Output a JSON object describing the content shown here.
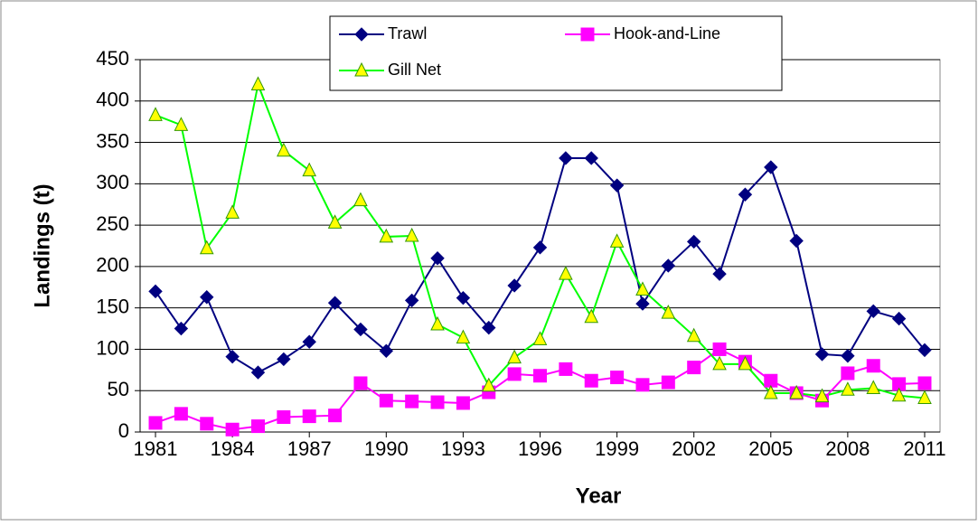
{
  "chart_data": {
    "type": "line",
    "x_label": "Year",
    "y_label": "Landings (t)",
    "x": [
      1981,
      1982,
      1983,
      1984,
      1985,
      1986,
      1987,
      1988,
      1989,
      1990,
      1991,
      1992,
      1993,
      1994,
      1995,
      1996,
      1997,
      1998,
      1999,
      2000,
      2001,
      2002,
      2003,
      2004,
      2005,
      2006,
      2007,
      2008,
      2009,
      2010,
      2011
    ],
    "series": [
      {
        "name": "Trawl",
        "color": "#000080",
        "marker": "diamond",
        "marker_fill": "#000080",
        "values": [
          170,
          125,
          163,
          91,
          72,
          88,
          109,
          156,
          124,
          98,
          159,
          210,
          162,
          126,
          177,
          223,
          331,
          331,
          298,
          155,
          201,
          230,
          191,
          287,
          320,
          231,
          94,
          92,
          146,
          137,
          99
        ]
      },
      {
        "name": "Hook-and-Line",
        "color": "#ff00ff",
        "marker": "square",
        "marker_fill": "#ff00ff",
        "values": [
          11,
          22,
          10,
          3,
          7,
          18,
          19,
          20,
          59,
          38,
          37,
          36,
          35,
          48,
          70,
          68,
          76,
          62,
          66,
          57,
          60,
          78,
          100,
          85,
          62,
          47,
          38,
          71,
          80,
          58,
          59
        ]
      },
      {
        "name": "Gill Net",
        "color": "#00ff00",
        "marker": "triangle",
        "marker_fill": "#ffff00",
        "values": [
          383,
          371,
          222,
          265,
          420,
          340,
          316,
          253,
          280,
          236,
          237,
          130,
          114,
          56,
          90,
          112,
          191,
          139,
          230,
          172,
          144,
          116,
          82,
          82,
          47,
          47,
          43,
          51,
          53,
          44,
          41
        ]
      }
    ],
    "xlim": [
      1980.4,
      2011.6
    ],
    "xticks": [
      1981,
      1984,
      1987,
      1990,
      1993,
      1996,
      1999,
      2002,
      2005,
      2008,
      2011
    ],
    "ylim": [
      0,
      450
    ],
    "yticks": [
      0,
      50,
      100,
      150,
      200,
      250,
      300,
      350,
      400,
      450
    ],
    "grid": true
  }
}
